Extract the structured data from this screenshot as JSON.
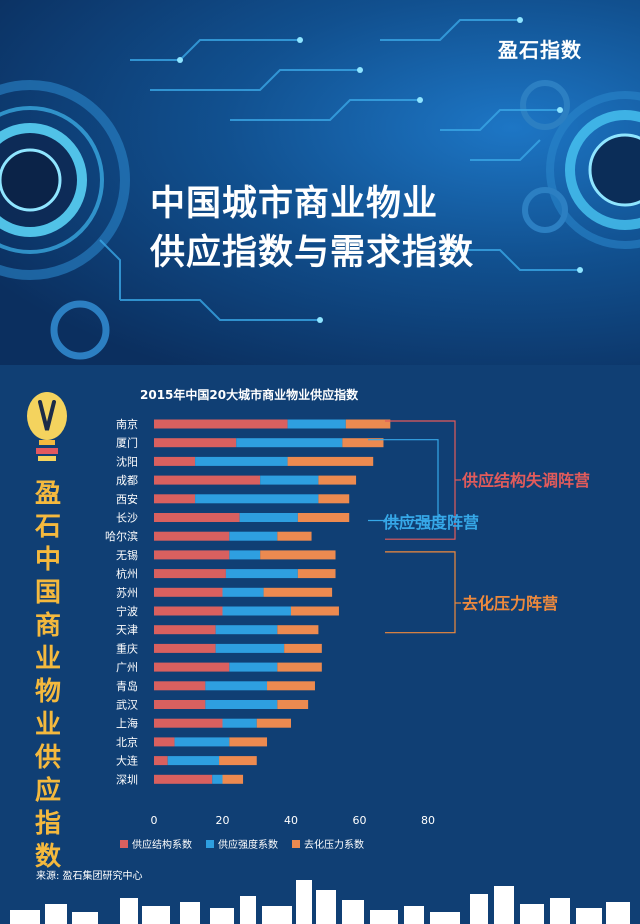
{
  "header": {
    "brand": "盈石指数",
    "title_line1": "中国城市商业物业",
    "title_line2": "供应指数与需求指数"
  },
  "sidebar": {
    "vertical_title": [
      "盈",
      "石",
      "中",
      "国",
      "商",
      "业",
      "物",
      "业",
      "供",
      "应",
      "指",
      "数"
    ]
  },
  "colors": {
    "structure": "#d9605f",
    "intensity": "#2e9fe0",
    "pressure": "#ec8a50",
    "group_structure": "#e25b5b",
    "group_intensity": "#36a8e8",
    "group_pressure": "#ef8a3c",
    "accent_gold": "#f4b93e"
  },
  "chart_data": {
    "type": "bar",
    "orientation": "horizontal",
    "stacked": true,
    "title": "2015年中国20大城市商业物业供应指数",
    "categories": [
      "南京",
      "厦门",
      "沈阳",
      "成都",
      "西安",
      "长沙",
      "哈尔滨",
      "无锡",
      "杭州",
      "苏州",
      "宁波",
      "天津",
      "重庆",
      "广州",
      "青岛",
      "武汉",
      "上海",
      "北京",
      "大连",
      "深圳"
    ],
    "series": [
      {
        "name": "供应结构系数",
        "values": [
          39,
          24,
          12,
          31,
          12,
          25,
          22,
          22,
          21,
          20,
          20,
          18,
          18,
          22,
          15,
          15,
          20,
          6,
          4,
          17
        ]
      },
      {
        "name": "供应强度系数",
        "values": [
          17,
          31,
          27,
          17,
          36,
          17,
          14,
          9,
          21,
          12,
          20,
          18,
          20,
          14,
          18,
          21,
          10,
          16,
          15,
          3
        ]
      },
      {
        "name": "去化压力系数",
        "values": [
          13,
          12,
          25,
          11,
          9,
          15,
          10,
          22,
          11,
          20,
          14,
          12,
          11,
          13,
          14,
          9,
          10,
          11,
          11,
          6
        ]
      }
    ],
    "xlim": [
      0,
      80
    ],
    "xticks": [
      0,
      20,
      40,
      60,
      80
    ],
    "groups": [
      {
        "label": "供应结构失调阵营",
        "from": "南京",
        "to": "哈尔滨"
      },
      {
        "label": "供应强度阵营",
        "from": "厦门",
        "to": "长沙"
      },
      {
        "label": "去化压力阵营",
        "from": "无锡",
        "to": "天津"
      }
    ],
    "grid": false,
    "legend": "bottom"
  },
  "footer": {
    "source": "来源: 盈石集团研究中心"
  }
}
